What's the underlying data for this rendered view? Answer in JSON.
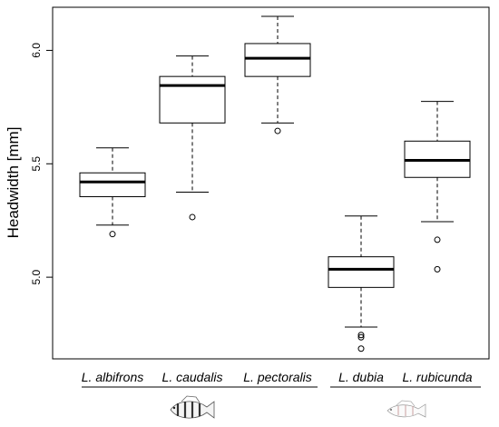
{
  "chart_data": {
    "type": "box",
    "ylabel": "Headwidth [mm]",
    "xlabel": "",
    "ylim": [
      4.64,
      6.19
    ],
    "yticks": [
      {
        "value": 5.0,
        "label": "5.0"
      },
      {
        "value": 5.5,
        "label": "5.5"
      },
      {
        "value": 6.0,
        "label": "6.0"
      }
    ],
    "groups": [
      {
        "name": "L. albifrons",
        "whisker_low": 5.23,
        "q1": 5.355,
        "median": 5.42,
        "q3": 5.46,
        "whisker_high": 5.57,
        "outliers": [
          5.19
        ]
      },
      {
        "name": "L. caudalis",
        "whisker_low": 5.375,
        "q1": 5.68,
        "median": 5.845,
        "q3": 5.885,
        "whisker_high": 5.975,
        "outliers": [
          5.265
        ]
      },
      {
        "name": "L. pectoralis",
        "whisker_low": 5.68,
        "q1": 5.885,
        "median": 5.965,
        "q3": 6.03,
        "whisker_high": 6.15,
        "outliers": [
          5.645
        ]
      },
      {
        "name": "L. dubia",
        "whisker_low": 4.78,
        "q1": 4.955,
        "median": 5.035,
        "q3": 5.09,
        "whisker_high": 5.27,
        "outliers": [
          4.745,
          4.735,
          4.685
        ]
      },
      {
        "name": "L. rubicunda",
        "whisker_low": 5.245,
        "q1": 5.44,
        "median": 5.515,
        "q3": 5.6,
        "whisker_high": 5.775,
        "outliers": [
          5.165,
          5.035
        ]
      }
    ],
    "grid": false,
    "legend": "none"
  },
  "icons": [
    "striped-fish-icon",
    "pale-fish-icon"
  ]
}
